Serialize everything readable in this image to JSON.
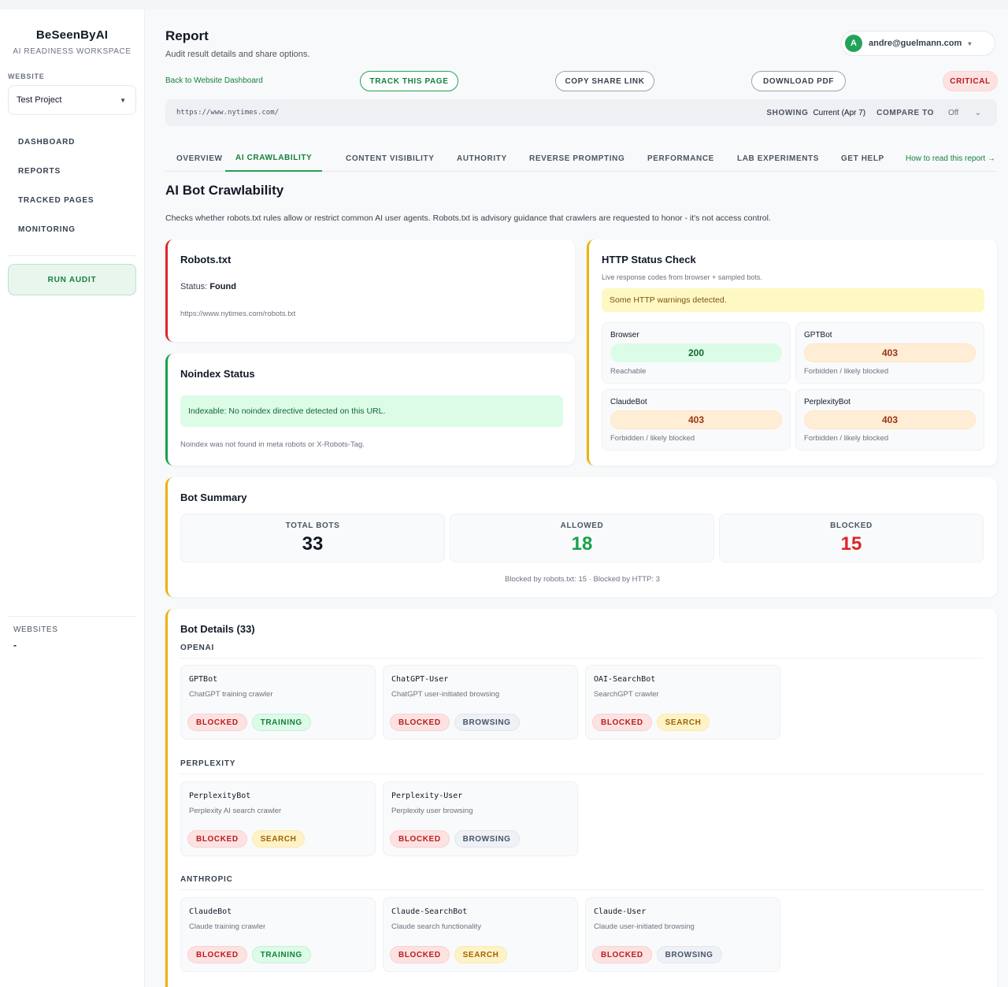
{
  "sidebar": {
    "brand": "BeSeenByAI",
    "brand_sub": "AI READINESS WORKSPACE",
    "website_label": "WEBSITE",
    "project": "Test Project",
    "nav": [
      "DASHBOARD",
      "REPORTS",
      "TRACKED PAGES",
      "MONITORING"
    ],
    "run_audit": "RUN AUDIT",
    "websites_label": "WEBSITES",
    "websites_value": "-"
  },
  "header": {
    "title": "Report",
    "subtitle": "Audit result details and share options.",
    "user_initial": "A",
    "user_email": "andre@guelmann.com",
    "back_link": "Back to Website Dashboard",
    "track_button": "TRACK THIS PAGE",
    "copy_button": "COPY SHARE LINK",
    "pdf_button": "DOWNLOAD PDF",
    "severity": "CRITICAL"
  },
  "url_bar": {
    "url": "https://www.nytimes.com/",
    "showing_label": "SHOWING",
    "showing_value": "Current (Apr 7)",
    "compare_label": "COMPARE TO",
    "compare_value": "Off"
  },
  "tabs": [
    "OVERVIEW",
    "AI CRAWLABILITY",
    "CONTENT VISIBILITY",
    "AUTHORITY",
    "REVERSE PROMPTING",
    "PERFORMANCE",
    "LAB EXPERIMENTS",
    "GET HELP"
  ],
  "active_tab": "AI CRAWLABILITY",
  "help_link": "How to read this report →",
  "section": {
    "title": "AI Bot Crawlability",
    "description": "Checks whether robots.txt rules allow or restrict common AI user agents. Robots.txt is advisory guidance that crawlers are requested to honor - it's not access control."
  },
  "robots": {
    "title": "Robots.txt",
    "status_label": "Status:",
    "status_value": "Found",
    "link": "https://www.nytimes.com/robots.txt"
  },
  "noindex": {
    "title": "Noindex Status",
    "notice": "Indexable: No noindex directive detected on this URL.",
    "foot": "Noindex was not found in meta robots or X-Robots-Tag."
  },
  "http": {
    "title": "HTTP Status Check",
    "subtitle": "Live response codes from browser + sampled bots.",
    "warning": "Some HTTP warnings detected.",
    "bots": [
      {
        "name": "Browser",
        "code": "200",
        "note": "Reachable"
      },
      {
        "name": "GPTBot",
        "code": "403",
        "note": "Forbidden / likely blocked"
      },
      {
        "name": "ClaudeBot",
        "code": "403",
        "note": "Forbidden / likely blocked"
      },
      {
        "name": "PerplexityBot",
        "code": "403",
        "note": "Forbidden / likely blocked"
      }
    ]
  },
  "summary": {
    "title": "Bot Summary",
    "total_label": "TOTAL BOTS",
    "total": "33",
    "allowed_label": "ALLOWED",
    "allowed": "18",
    "blocked_label": "BLOCKED",
    "blocked": "15",
    "foot": "Blocked by robots.txt: 15 · Blocked by HTTP: 3"
  },
  "details": {
    "title": "Bot Details (33)",
    "groups": [
      {
        "label": "OPENAI",
        "bots": [
          {
            "name": "GPTBot",
            "desc": "ChatGPT training crawler",
            "status": "BLOCKED",
            "kind": "TRAINING"
          },
          {
            "name": "ChatGPT-User",
            "desc": "ChatGPT user-initiated browsing",
            "status": "BLOCKED",
            "kind": "BROWSING"
          },
          {
            "name": "OAI-SearchBot",
            "desc": "SearchGPT crawler",
            "status": "BLOCKED",
            "kind": "SEARCH"
          }
        ]
      },
      {
        "label": "PERPLEXITY",
        "bots": [
          {
            "name": "PerplexityBot",
            "desc": "Perplexity AI search crawler",
            "status": "BLOCKED",
            "kind": "SEARCH"
          },
          {
            "name": "Perplexity-User",
            "desc": "Perplexity user browsing",
            "status": "BLOCKED",
            "kind": "BROWSING"
          }
        ]
      },
      {
        "label": "ANTHROPIC",
        "bots": [
          {
            "name": "ClaudeBot",
            "desc": "Claude training crawler",
            "status": "BLOCKED",
            "kind": "TRAINING"
          },
          {
            "name": "Claude-SearchBot",
            "desc": "Claude search functionality",
            "status": "BLOCKED",
            "kind": "SEARCH"
          },
          {
            "name": "Claude-User",
            "desc": "Claude user-initiated browsing",
            "status": "BLOCKED",
            "kind": "BROWSING"
          }
        ]
      }
    ]
  },
  "colors": {
    "accent": "#22a35a",
    "critical": "#b91c1c",
    "allowed": "#16a34a",
    "blocked": "#dc2626"
  }
}
